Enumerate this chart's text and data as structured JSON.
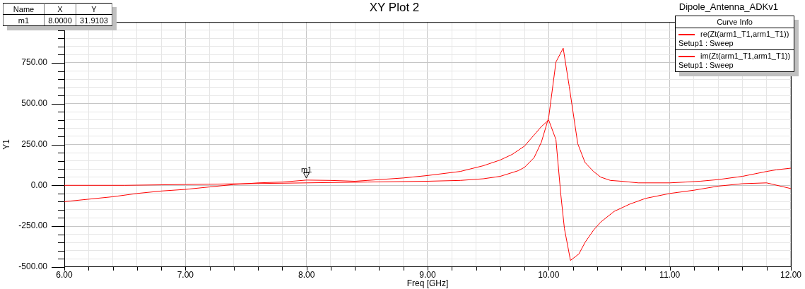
{
  "chart_data": {
    "type": "line",
    "title": "XY Plot 2",
    "subtitle": "Dipole_Antenna_ADKv1",
    "xlabel": "Freq [GHz]",
    "ylabel": "Y1",
    "legend_title": "Curve Info",
    "legend": "top right",
    "grid": true,
    "marker": "none",
    "line_style": "solid",
    "xlim": [
      6,
      12
    ],
    "ylim": [
      -500,
      1000
    ],
    "xticks": [
      {
        "value": 6,
        "label": "6.00"
      },
      {
        "value": 6.2,
        "label": null
      },
      {
        "value": 6.4,
        "label": null
      },
      {
        "value": 6.6,
        "label": null
      },
      {
        "value": 6.8,
        "label": null
      },
      {
        "value": 7,
        "label": "7.00"
      },
      {
        "value": 7.2,
        "label": null
      },
      {
        "value": 7.4,
        "label": null
      },
      {
        "value": 7.6,
        "label": null
      },
      {
        "value": 7.8,
        "label": null
      },
      {
        "value": 8,
        "label": "8.00"
      },
      {
        "value": 8.2,
        "label": null
      },
      {
        "value": 8.4,
        "label": null
      },
      {
        "value": 8.6,
        "label": null
      },
      {
        "value": 8.8,
        "label": null
      },
      {
        "value": 9,
        "label": "9.00"
      },
      {
        "value": 9.2,
        "label": null
      },
      {
        "value": 9.4,
        "label": null
      },
      {
        "value": 9.6,
        "label": null
      },
      {
        "value": 9.8,
        "label": null
      },
      {
        "value": 10,
        "label": "10.00"
      },
      {
        "value": 10.2,
        "label": null
      },
      {
        "value": 10.4,
        "label": null
      },
      {
        "value": 10.6,
        "label": null
      },
      {
        "value": 10.8,
        "label": null
      },
      {
        "value": 11,
        "label": "11.00"
      },
      {
        "value": 11.2,
        "label": null
      },
      {
        "value": 11.4,
        "label": null
      },
      {
        "value": 11.6,
        "label": null
      },
      {
        "value": 11.8,
        "label": null
      },
      {
        "value": 12,
        "label": "12.00"
      }
    ],
    "yticks": [
      {
        "value": -500,
        "label": "-500.00"
      },
      {
        "value": -450,
        "label": null
      },
      {
        "value": -400,
        "label": null
      },
      {
        "value": -350,
        "label": null
      },
      {
        "value": -300,
        "label": null
      },
      {
        "value": -250,
        "label": "-250.00"
      },
      {
        "value": -200,
        "label": null
      },
      {
        "value": -150,
        "label": null
      },
      {
        "value": -100,
        "label": null
      },
      {
        "value": -50,
        "label": null
      },
      {
        "value": 0,
        "label": "0.00"
      },
      {
        "value": 50,
        "label": null
      },
      {
        "value": 100,
        "label": null
      },
      {
        "value": 150,
        "label": null
      },
      {
        "value": 200,
        "label": null
      },
      {
        "value": 250,
        "label": "250.00"
      },
      {
        "value": 300,
        "label": null
      },
      {
        "value": 350,
        "label": null
      },
      {
        "value": 400,
        "label": null
      },
      {
        "value": 450,
        "label": null
      },
      {
        "value": 500,
        "label": "500.00"
      },
      {
        "value": 550,
        "label": null
      },
      {
        "value": 600,
        "label": null
      },
      {
        "value": 650,
        "label": null
      },
      {
        "value": 700,
        "label": null
      },
      {
        "value": 750,
        "label": "750.00"
      },
      {
        "value": 800,
        "label": null
      },
      {
        "value": 850,
        "label": null
      },
      {
        "value": 900,
        "label": null
      },
      {
        "value": 950,
        "label": null
      }
    ],
    "series": [
      {
        "name": "re(Zt(arm1_T1,arm1_T1))\nSetup1 : Sweep",
        "color": "#ff0000",
        "x": [
          6,
          6.5,
          7,
          7.5,
          8,
          8.5,
          9,
          9.27,
          9.46,
          9.6,
          9.75,
          9.8,
          9.88,
          9.94,
          10,
          10.06,
          10.12,
          10.17,
          10.24,
          10.3,
          10.37,
          10.43,
          10.51,
          10.6,
          10.74,
          11,
          11.13,
          11.25,
          11.4,
          11.6,
          11.8,
          11.88,
          12
        ],
        "values": [
          0,
          0,
          5,
          10,
          15,
          20,
          25,
          30,
          40,
          55,
          90,
          110,
          170,
          265,
          415,
          755,
          840,
          605,
          255,
          140,
          85,
          50,
          30,
          25,
          15,
          15,
          20,
          25,
          35,
          55,
          85,
          95,
          105
        ]
      },
      {
        "name": "im(Zt(arm1_T1,arm1_T1))\nSetup1 : Sweep",
        "color": "#ff0000",
        "x": [
          6,
          6.2,
          6.4,
          6.6,
          6.8,
          7,
          7.2,
          7.4,
          7.6,
          7.8,
          8,
          8.2,
          8.4,
          8.6,
          8.8,
          9,
          9.27,
          9.46,
          9.6,
          9.7,
          9.8,
          9.94,
          10,
          10.06,
          10.1,
          10.13,
          10.18,
          10.25,
          10.3,
          10.37,
          10.43,
          10.54,
          10.67,
          10.8,
          11,
          11.2,
          11.4,
          11.6,
          11.8,
          12
        ],
        "values": [
          -100,
          -85,
          -70,
          -50,
          -35,
          -25,
          -10,
          5,
          15,
          20,
          32,
          30,
          25,
          35,
          45,
          60,
          85,
          120,
          155,
          190,
          240,
          360,
          400,
          280,
          -55,
          -265,
          -460,
          -420,
          -350,
          -275,
          -225,
          -160,
          -115,
          -80,
          -50,
          -30,
          -5,
          10,
          15,
          -20
        ]
      }
    ],
    "annotations": [
      {
        "text": "m1",
        "x": 8,
        "y": 31.9103
      },
      "Name",
      "X",
      "Y",
      "m1",
      "8.0000",
      "31.9103"
    ]
  }
}
